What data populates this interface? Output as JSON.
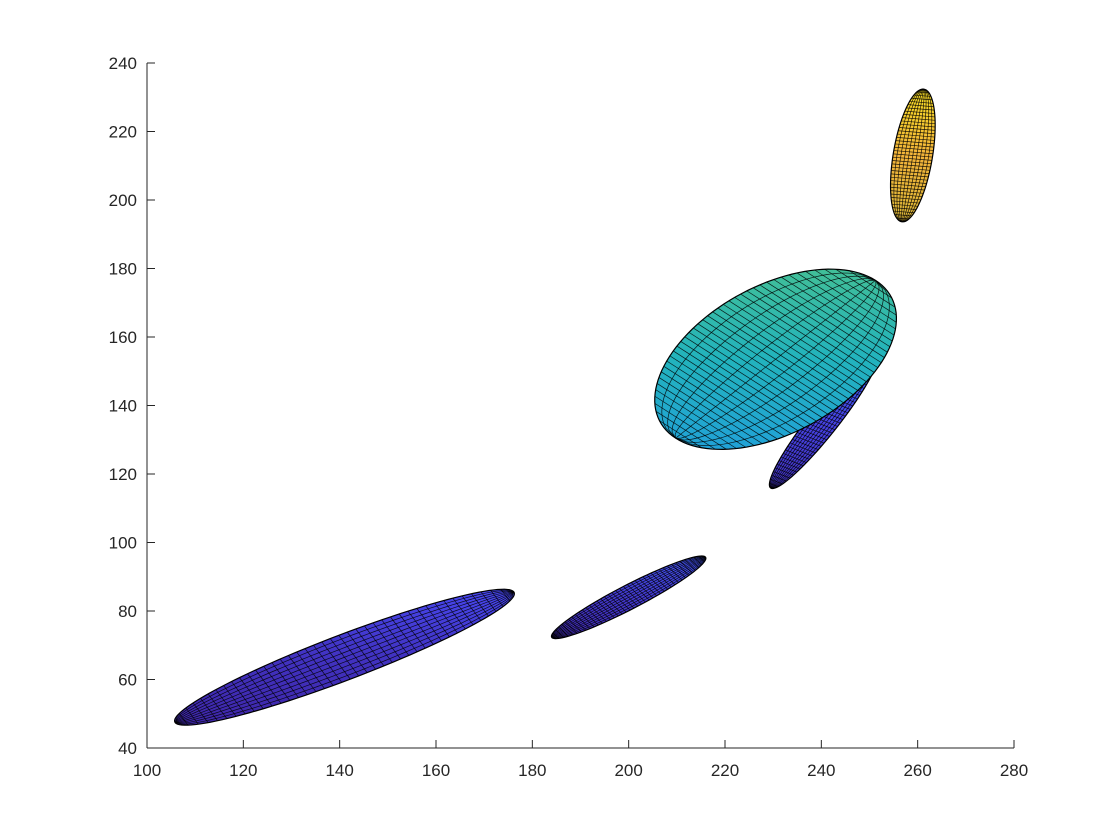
{
  "chart_data": {
    "type": "ellipsoid-surface",
    "title": "",
    "xlabel": "",
    "ylabel": "",
    "xlim": [
      100,
      280
    ],
    "ylim": [
      40,
      240
    ],
    "x_ticks": [
      "100",
      "120",
      "140",
      "160",
      "180",
      "200",
      "220",
      "240",
      "260",
      "280"
    ],
    "y_ticks": [
      "40",
      "60",
      "80",
      "100",
      "120",
      "140",
      "160",
      "180",
      "200",
      "220",
      "240"
    ],
    "grid": false,
    "legend": "none",
    "colormap": [
      "#3e26a8",
      "#4748f0",
      "#2e87f7",
      "#1bb0c6",
      "#4cc38b",
      "#c4b937",
      "#f5b43a",
      "#f9fb15"
    ],
    "ellipses": [
      {
        "center": [
          141,
          66.5
        ],
        "semi_axes": [
          40.0,
          6.2
        ],
        "angle_deg": 28.5,
        "color_level": 0.05
      },
      {
        "center": [
          200,
          84
        ],
        "semi_axes": [
          19.8,
          3.2
        ],
        "angle_deg": 36.5,
        "color_level": 0.08
      },
      {
        "center": [
          240.5,
          135.5
        ],
        "semi_axes": [
          22.5,
          3.3
        ],
        "angle_deg": 61.0,
        "color_level": 0.12
      },
      {
        "center": [
          230.5,
          153.5
        ],
        "semi_axes": [
          31.0,
          19.0
        ],
        "angle_deg": 48.0,
        "color_level": 0.45
      },
      {
        "center": [
          259,
          213
        ],
        "semi_axes": [
          19.5,
          4.1
        ],
        "angle_deg": 83.5,
        "color_level": 0.85
      }
    ]
  }
}
